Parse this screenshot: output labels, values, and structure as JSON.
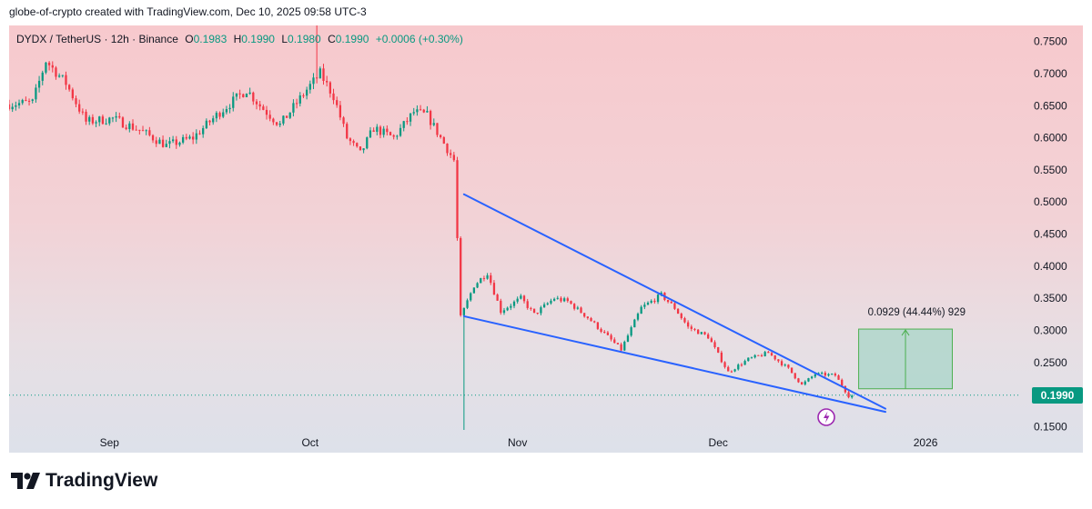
{
  "header": {
    "caption": "globe-of-crypto created with TradingView.com, Dec 10, 2025 09:58 UTC-3"
  },
  "legend": {
    "symbol": "DYDX / TetherUS · 12h · Binance",
    "open_label": "O",
    "open": "0.1983",
    "high_label": "H",
    "high": "0.1990",
    "low_label": "L",
    "low": "0.1980",
    "close_label": "C",
    "close": "0.1990",
    "change": "+0.0006 (+0.30%)"
  },
  "price_tag": "0.1990",
  "range_tool": {
    "label": "0.0929 (44.44%) 929",
    "from_price": 0.209,
    "to_price": 0.302
  },
  "brand": "TradingView",
  "colors": {
    "up": "#089981",
    "down": "#f23645",
    "trendline": "#2962ff",
    "range_fill": "#a8d5c8",
    "range_border": "#4caf50"
  },
  "chart_data": {
    "type": "candlestick",
    "y_axis_ticks": [
      "0.7500",
      "0.7000",
      "0.6500",
      "0.6000",
      "0.5500",
      "0.5000",
      "0.4500",
      "0.4000",
      "0.3500",
      "0.3000",
      "0.2500",
      "0.1990",
      "0.1500"
    ],
    "x_axis_ticks": [
      "Sep",
      "Oct",
      "Nov",
      "Dec",
      "2026"
    ],
    "ylim": [
      0.135,
      0.775
    ],
    "x_range": [
      "2025-08-17",
      "2026-01-15"
    ],
    "last_price": 0.199,
    "price_path": [
      [
        "2025-08-17",
        0.652
      ],
      [
        "2025-08-21",
        0.655
      ],
      [
        "2025-08-23",
        0.72
      ],
      [
        "2025-08-26",
        0.685
      ],
      [
        "2025-08-29",
        0.625
      ],
      [
        "2025-09-02",
        0.63
      ],
      [
        "2025-09-06",
        0.612
      ],
      [
        "2025-09-10",
        0.588
      ],
      [
        "2025-09-14",
        0.6
      ],
      [
        "2025-09-18",
        0.64
      ],
      [
        "2025-09-22",
        0.675
      ],
      [
        "2025-09-24",
        0.65
      ],
      [
        "2025-09-27",
        0.62
      ],
      [
        "2025-10-01",
        0.675
      ],
      [
        "2025-10-03",
        0.7
      ],
      [
        "2025-10-05",
        0.665
      ],
      [
        "2025-10-07",
        0.6
      ],
      [
        "2025-10-09",
        0.575
      ],
      [
        "2025-10-11",
        0.615
      ],
      [
        "2025-10-14",
        0.6
      ],
      [
        "2025-10-17",
        0.64
      ],
      [
        "2025-10-19",
        0.635
      ],
      [
        "2025-10-21",
        0.6
      ],
      [
        "2025-10-23",
        0.565
      ],
      [
        "2025-10-24",
        0.32
      ],
      [
        "2025-10-26",
        0.37
      ],
      [
        "2025-10-28",
        0.39
      ],
      [
        "2025-10-30",
        0.33
      ],
      [
        "2025-11-02",
        0.35
      ],
      [
        "2025-11-04",
        0.325
      ],
      [
        "2025-11-07",
        0.35
      ],
      [
        "2025-11-09",
        0.345
      ],
      [
        "2025-11-12",
        0.32
      ],
      [
        "2025-11-14",
        0.3
      ],
      [
        "2025-11-17",
        0.27
      ],
      [
        "2025-11-20",
        0.335
      ],
      [
        "2025-11-23",
        0.355
      ],
      [
        "2025-11-25",
        0.335
      ],
      [
        "2025-11-27",
        0.305
      ],
      [
        "2025-11-30",
        0.29
      ],
      [
        "2025-12-03",
        0.235
      ],
      [
        "2025-12-06",
        0.255
      ],
      [
        "2025-12-09",
        0.265
      ],
      [
        "2025-12-12",
        0.24
      ],
      [
        "2025-12-14",
        0.215
      ],
      [
        "2025-12-16",
        0.232
      ],
      [
        "2025-12-19",
        0.23
      ],
      [
        "2025-12-21",
        0.198
      ]
    ],
    "spikes": [
      {
        "date": "2025-10-02",
        "high": 0.775
      },
      {
        "date": "2025-10-24",
        "low": 0.145
      }
    ],
    "trendlines": [
      {
        "name": "upper",
        "from": [
          "2025-10-24",
          0.512
        ],
        "to": [
          "2025-12-26",
          0.178
        ]
      },
      {
        "name": "lower",
        "from": [
          "2025-10-24",
          0.322
        ],
        "to": [
          "2025-12-26",
          0.173
        ]
      }
    ]
  }
}
